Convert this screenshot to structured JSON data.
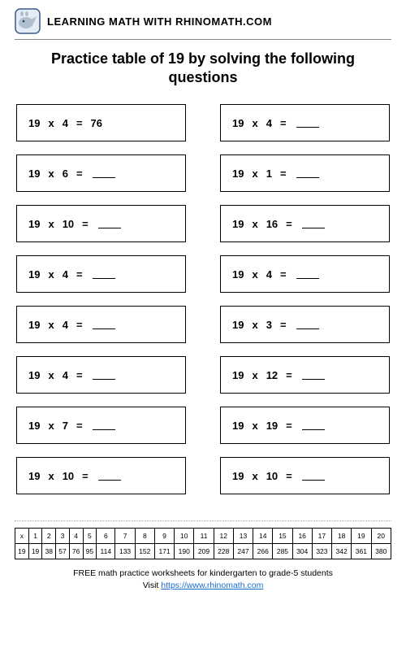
{
  "brand": "LEARNING MATH WITH RHINOMATH.COM",
  "title": "Practice table of 19 by solving the following questions",
  "questions": [
    {
      "a": "19",
      "op": "x",
      "b": "4",
      "eq": "=",
      "ans": "76"
    },
    {
      "a": "19",
      "op": "x",
      "b": "4",
      "eq": "=",
      "ans": ""
    },
    {
      "a": "19",
      "op": "x",
      "b": "6",
      "eq": "=",
      "ans": ""
    },
    {
      "a": "19",
      "op": "x",
      "b": "1",
      "eq": "=",
      "ans": ""
    },
    {
      "a": "19",
      "op": "x",
      "b": "10",
      "eq": "=",
      "ans": ""
    },
    {
      "a": "19",
      "op": "x",
      "b": "16",
      "eq": "=",
      "ans": ""
    },
    {
      "a": "19",
      "op": "x",
      "b": "4",
      "eq": "=",
      "ans": ""
    },
    {
      "a": "19",
      "op": "x",
      "b": "4",
      "eq": "=",
      "ans": ""
    },
    {
      "a": "19",
      "op": "x",
      "b": "4",
      "eq": "=",
      "ans": ""
    },
    {
      "a": "19",
      "op": "x",
      "b": "3",
      "eq": "=",
      "ans": ""
    },
    {
      "a": "19",
      "op": "x",
      "b": "4",
      "eq": "=",
      "ans": ""
    },
    {
      "a": "19",
      "op": "x",
      "b": "12",
      "eq": "=",
      "ans": ""
    },
    {
      "a": "19",
      "op": "x",
      "b": "7",
      "eq": "=",
      "ans": ""
    },
    {
      "a": "19",
      "op": "x",
      "b": "19",
      "eq": "=",
      "ans": ""
    },
    {
      "a": "19",
      "op": "x",
      "b": "10",
      "eq": "=",
      "ans": ""
    },
    {
      "a": "19",
      "op": "x",
      "b": "10",
      "eq": "=",
      "ans": ""
    }
  ],
  "answer_table": {
    "header": [
      "x",
      "1",
      "2",
      "3",
      "4",
      "5",
      "6",
      "7",
      "8",
      "9",
      "10",
      "11",
      "12",
      "13",
      "14",
      "15",
      "16",
      "17",
      "18",
      "19",
      "20"
    ],
    "row_label": "19",
    "row": [
      "19",
      "38",
      "57",
      "76",
      "95",
      "114",
      "133",
      "152",
      "171",
      "190",
      "209",
      "228",
      "247",
      "266",
      "285",
      "304",
      "323",
      "342",
      "361",
      "380"
    ]
  },
  "footer": {
    "line1": "FREE math practice worksheets for kindergarten to grade-5 students",
    "line2_prefix": "Visit ",
    "link": "https://www.rhinomath.com"
  }
}
